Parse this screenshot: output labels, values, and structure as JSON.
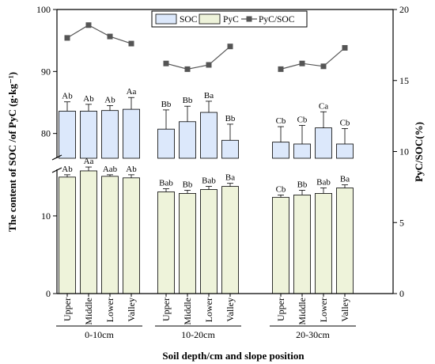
{
  "chart_data": {
    "type": "bar",
    "title": "",
    "xlabel": "Soil depth/cm and slope position",
    "ylabel_left": "The content of SOC /of PyC (g·kg⁻¹)",
    "ylabel_right": "PyC/SOC(%)",
    "groups": [
      {
        "label": "0-10cm",
        "positions": [
          "Upper",
          "Middle",
          "Lower",
          "Valley"
        ]
      },
      {
        "label": "10-20cm",
        "positions": [
          "Upper",
          "Middle",
          "Lower",
          "Valley"
        ]
      },
      {
        "label": "20-30cm",
        "positions": [
          "Upper",
          "Middle",
          "Lower",
          "Valley"
        ]
      }
    ],
    "axis_left_lower": {
      "min": 0,
      "max": 16,
      "ticks": [
        0,
        10
      ]
    },
    "axis_left_upper": {
      "min": 76,
      "max": 100,
      "ticks": [
        80,
        90,
        100
      ]
    },
    "axis_right": {
      "min": 0,
      "max": 20,
      "ticks": [
        0,
        5,
        10,
        15,
        20
      ]
    },
    "axis_break": true,
    "legend_position": "top-center",
    "series": [
      {
        "name": "SOC",
        "color": "#dce8fb",
        "values": [
          83.6,
          83.6,
          83.7,
          83.9,
          80.7,
          81.9,
          83.4,
          78.9,
          78.6,
          78.3,
          80.9,
          78.3
        ],
        "errors": [
          1.5,
          1.1,
          0.8,
          1.9,
          3.1,
          2.5,
          1.8,
          2.6,
          2.5,
          3.0,
          2.6,
          2.5
        ],
        "labels": [
          "Ab",
          "Ab",
          "Ab",
          "Aa",
          "Bb",
          "Bb",
          "Ba",
          "Bb",
          "Cb",
          "Cb",
          "Ca",
          "Cb"
        ]
      },
      {
        "name": "PyC",
        "color": "#eef3da",
        "values": [
          15.0,
          15.8,
          15.1,
          14.9,
          13.1,
          12.9,
          13.4,
          13.8,
          12.4,
          12.7,
          12.9,
          13.6
        ],
        "errors": [
          0.3,
          0.5,
          0.2,
          0.4,
          0.4,
          0.4,
          0.4,
          0.4,
          0.3,
          0.6,
          0.7,
          0.4
        ],
        "labels": [
          "Ab",
          "Aa",
          "Aab",
          "Ab",
          "Bab",
          "Bb",
          "Bab",
          "Ba",
          "Cb",
          "Bb",
          "Bab",
          "Ba"
        ]
      },
      {
        "name": "PyC/SOC",
        "type": "line",
        "axis": "right",
        "color": "#555555",
        "values": [
          18.0,
          18.9,
          18.1,
          17.6,
          16.2,
          15.8,
          16.1,
          17.4,
          15.8,
          16.2,
          16.0,
          17.3
        ]
      }
    ]
  }
}
